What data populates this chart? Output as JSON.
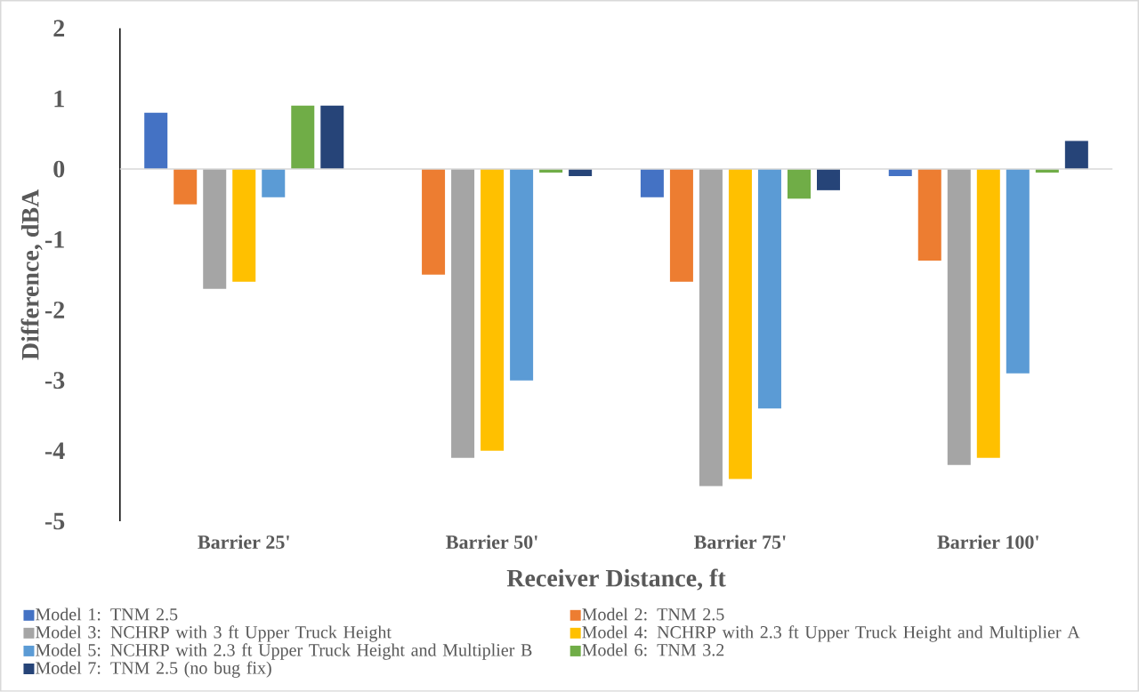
{
  "chart_data": {
    "type": "bar",
    "xlabel": "Receiver Distance, ft",
    "ylabel": "Difference, dBA",
    "categories": [
      "Barrier 25'",
      "Barrier 50'",
      "Barrier 75'",
      "Barrier 100'"
    ],
    "ylim": [
      -5,
      2
    ],
    "yticks": [
      -5,
      -4,
      -3,
      -2,
      -1,
      0,
      1,
      2
    ],
    "legend": "bottom",
    "series": [
      {
        "name": "Model 1: TNM 2.5",
        "color": "#4472c4",
        "values": [
          0.8,
          0,
          -0.4,
          -0.1
        ]
      },
      {
        "name": "Model 2: TNM 2.5",
        "color": "#ed7d31",
        "values": [
          -0.5,
          -1.5,
          -1.6,
          -1.3
        ]
      },
      {
        "name": "Model 3: NCHRP with 3 ft Upper Truck Height",
        "color": "#a5a5a5",
        "values": [
          -1.7,
          -4.1,
          -4.5,
          -4.2
        ]
      },
      {
        "name": "Model 4: NCHRP with 2.3 ft Upper Truck Height and Multiplier A",
        "color": "#ffc000",
        "values": [
          -1.6,
          -4.0,
          -4.4,
          -4.1
        ]
      },
      {
        "name": "Model 5: NCHRP with 2.3 ft Upper Truck Height and Multiplier B",
        "color": "#5b9bd5",
        "values": [
          -0.4,
          -3.0,
          -3.4,
          -2.9
        ]
      },
      {
        "name": "Model 6: TNM 3.2",
        "color": "#70ad47",
        "values": [
          0.9,
          -0.05,
          -0.42,
          -0.05
        ]
      },
      {
        "name": "Model 7: TNM 2.5 (no bug fix)",
        "color": "#264478",
        "values": [
          0.9,
          -0.1,
          -0.3,
          0.4
        ]
      }
    ]
  }
}
